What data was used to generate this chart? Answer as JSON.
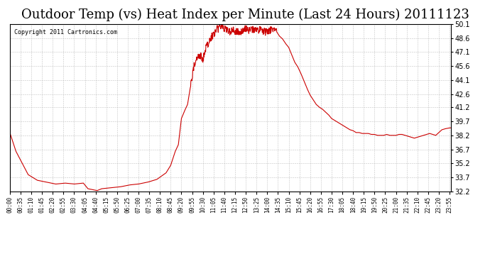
{
  "title": "Outdoor Temp (vs) Heat Index per Minute (Last 24 Hours) 20111123",
  "copyright_text": "Copyright 2011 Cartronics.com",
  "line_color": "#cc0000",
  "background_color": "#ffffff",
  "grid_color": "#aaaaaa",
  "title_fontsize": 13,
  "ylabel_right": true,
  "ylim": [
    32.2,
    50.1
  ],
  "yticks": [
    32.2,
    33.7,
    35.2,
    36.7,
    38.2,
    39.7,
    41.2,
    42.6,
    44.1,
    45.6,
    47.1,
    48.6,
    50.1
  ],
  "xtick_labels": [
    "00:00",
    "00:35",
    "01:10",
    "01:45",
    "02:20",
    "02:55",
    "03:30",
    "04:05",
    "04:40",
    "05:15",
    "05:50",
    "06:25",
    "07:00",
    "07:35",
    "08:10",
    "08:45",
    "09:20",
    "09:55",
    "10:30",
    "11:05",
    "11:40",
    "12:15",
    "12:50",
    "13:25",
    "14:00",
    "14:35",
    "15:10",
    "15:45",
    "16:20",
    "16:55",
    "17:30",
    "18:05",
    "18:40",
    "19:15",
    "19:50",
    "20:25",
    "21:00",
    "21:35",
    "22:10",
    "22:45",
    "23:20",
    "23:55"
  ],
  "keypoints": {
    "0:00": 38.5,
    "0:20": 36.5,
    "1:00": 34.0,
    "1:30": 33.4,
    "2:00": 33.2,
    "2:30": 33.0,
    "3:00": 33.1,
    "3:30": 33.0,
    "4:00": 33.1,
    "4:15": 32.5,
    "4:30": 32.4,
    "4:45": 32.3,
    "5:00": 32.5,
    "5:30": 32.6,
    "6:00": 32.7,
    "6:30": 32.9,
    "7:00": 33.0,
    "7:30": 33.2,
    "8:00": 33.5,
    "8:30": 34.2,
    "8:45": 35.0,
    "9:00": 36.5,
    "9:10": 37.2,
    "9:20": 40.0,
    "9:30": 40.8,
    "9:40": 41.5,
    "9:50": 43.5,
    "10:00": 45.5,
    "10:10": 46.5,
    "10:20": 46.8,
    "10:30": 46.3,
    "10:40": 47.5,
    "10:50": 48.2,
    "11:00": 48.8,
    "11:10": 49.2,
    "11:15": 49.8,
    "11:20": 49.5,
    "11:25": 49.9,
    "11:30": 50.0,
    "11:40": 49.6,
    "11:50": 49.4,
    "12:00": 49.3,
    "12:10": 49.4,
    "12:20": 49.3,
    "12:30": 49.1,
    "12:40": 49.5,
    "12:50": 49.6,
    "13:00": 49.4,
    "13:10": 49.5,
    "13:20": 49.6,
    "13:30": 49.4,
    "13:40": 49.5,
    "13:50": 49.3,
    "14:00": 49.2,
    "14:10": 49.4,
    "14:15": 49.5,
    "14:20": 49.4,
    "14:30": 49.3,
    "14:40": 48.8,
    "14:50": 48.5,
    "15:00": 48.0,
    "15:10": 47.6,
    "15:20": 46.8,
    "15:30": 46.0,
    "15:40": 45.5,
    "15:50": 44.8,
    "16:00": 44.0,
    "16:10": 43.2,
    "16:20": 42.5,
    "16:30": 42.0,
    "16:40": 41.5,
    "16:50": 41.2,
    "17:00": 41.0,
    "17:10": 40.7,
    "17:20": 40.4,
    "17:30": 40.0,
    "17:40": 39.8,
    "17:50": 39.6,
    "18:00": 39.4,
    "18:10": 39.2,
    "18:20": 39.0,
    "18:30": 38.8,
    "18:40": 38.7,
    "18:50": 38.5,
    "19:00": 38.5,
    "19:10": 38.4,
    "19:20": 38.4,
    "19:30": 38.4,
    "19:40": 38.3,
    "19:50": 38.3,
    "20:00": 38.2,
    "20:10": 38.2,
    "20:20": 38.2,
    "20:30": 38.3,
    "20:40": 38.2,
    "20:50": 38.2,
    "21:00": 38.2,
    "21:10": 38.3,
    "21:20": 38.3,
    "21:30": 38.2,
    "21:40": 38.1,
    "21:50": 38.0,
    "22:00": 37.9,
    "22:10": 38.0,
    "22:20": 38.1,
    "22:30": 38.2,
    "22:40": 38.3,
    "22:50": 38.4,
    "23:00": 38.3,
    "23:10": 38.2,
    "23:20": 38.5,
    "23:30": 38.8,
    "23:40": 38.9,
    "23:55": 39.0
  }
}
